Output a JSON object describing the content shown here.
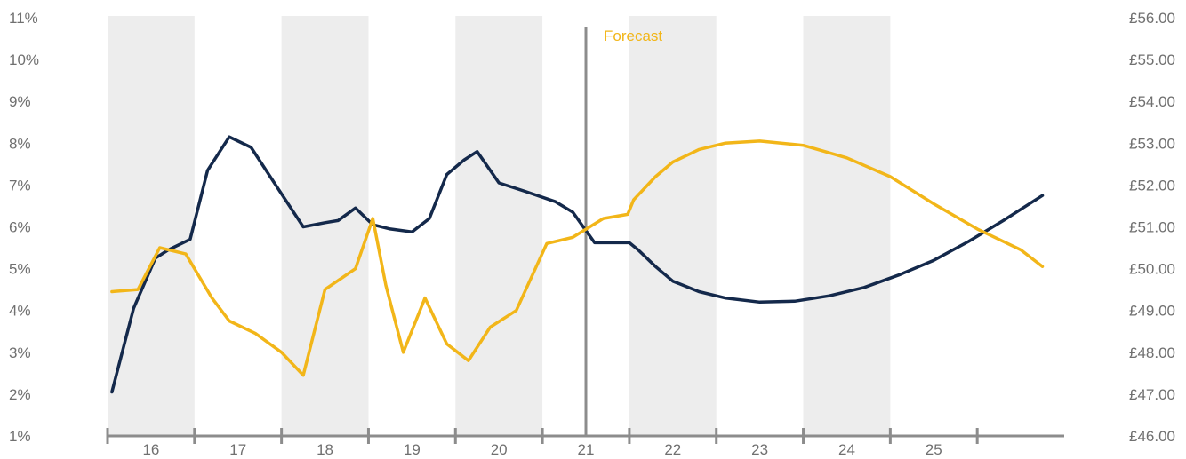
{
  "chart_data": {
    "type": "line",
    "x_categories": [
      "16",
      "17",
      "18",
      "19",
      "20",
      "21",
      "22",
      "23",
      "24",
      "25"
    ],
    "y_left": {
      "ticks": [
        "1%",
        "2%",
        "3%",
        "4%",
        "5%",
        "6%",
        "7%",
        "8%",
        "9%",
        "10%",
        "11%"
      ],
      "range": [
        1,
        11
      ]
    },
    "y_right": {
      "ticks": [
        "£46.00",
        "£47.00",
        "£48.00",
        "£49.00",
        "£50.00",
        "£51.00",
        "£52.00",
        "£53.00",
        "£54.00",
        "£55.00",
        "£56.00"
      ],
      "range": [
        46,
        56
      ]
    },
    "shaded_bands": [
      "16",
      "18",
      "20",
      "22",
      "24"
    ],
    "forecast": {
      "label": "Forecast",
      "starts_at": 21.0
    },
    "grid": false,
    "series": [
      {
        "axis": "left",
        "color": "#14294b",
        "points": [
          [
            15.55,
            2.05
          ],
          [
            15.8,
            4.05
          ],
          [
            16.05,
            5.25
          ],
          [
            16.2,
            5.45
          ],
          [
            16.45,
            5.7
          ],
          [
            16.65,
            7.35
          ],
          [
            16.9,
            8.15
          ],
          [
            17.15,
            7.9
          ],
          [
            17.45,
            6.95
          ],
          [
            17.75,
            6.0
          ],
          [
            18.0,
            6.1
          ],
          [
            18.15,
            6.15
          ],
          [
            18.35,
            6.45
          ],
          [
            18.55,
            6.05
          ],
          [
            18.75,
            5.95
          ],
          [
            19.0,
            5.88
          ],
          [
            19.2,
            6.2
          ],
          [
            19.4,
            7.25
          ],
          [
            19.6,
            7.6
          ],
          [
            19.75,
            7.8
          ],
          [
            20.0,
            7.05
          ],
          [
            20.3,
            6.85
          ],
          [
            20.65,
            6.6
          ],
          [
            20.85,
            6.35
          ],
          [
            21.1,
            5.62
          ],
          [
            21.5,
            5.62
          ],
          [
            21.6,
            5.45
          ],
          [
            21.8,
            5.05
          ],
          [
            22.0,
            4.7
          ],
          [
            22.3,
            4.45
          ],
          [
            22.6,
            4.3
          ],
          [
            23.0,
            4.2
          ],
          [
            23.4,
            4.22
          ],
          [
            23.8,
            4.35
          ],
          [
            24.2,
            4.55
          ],
          [
            24.6,
            4.85
          ],
          [
            25.0,
            5.2
          ],
          [
            25.4,
            5.65
          ],
          [
            25.8,
            6.15
          ],
          [
            26.25,
            6.75
          ]
        ]
      },
      {
        "axis": "right",
        "color": "#f2b619",
        "points": [
          [
            15.55,
            49.45
          ],
          [
            15.85,
            49.5
          ],
          [
            16.1,
            50.5
          ],
          [
            16.4,
            50.35
          ],
          [
            16.7,
            49.3
          ],
          [
            16.9,
            48.75
          ],
          [
            17.2,
            48.45
          ],
          [
            17.5,
            48.0
          ],
          [
            17.75,
            47.45
          ],
          [
            18.0,
            49.5
          ],
          [
            18.35,
            50.0
          ],
          [
            18.55,
            51.2
          ],
          [
            18.7,
            49.6
          ],
          [
            18.9,
            48.0
          ],
          [
            19.15,
            49.3
          ],
          [
            19.4,
            48.2
          ],
          [
            19.65,
            47.8
          ],
          [
            19.9,
            48.6
          ],
          [
            20.2,
            49.0
          ],
          [
            20.55,
            50.6
          ],
          [
            20.85,
            50.75
          ],
          [
            21.2,
            51.2
          ],
          [
            21.48,
            51.3
          ],
          [
            21.55,
            51.65
          ],
          [
            21.8,
            52.2
          ],
          [
            22.0,
            52.55
          ],
          [
            22.3,
            52.85
          ],
          [
            22.6,
            53.0
          ],
          [
            23.0,
            53.05
          ],
          [
            23.5,
            52.95
          ],
          [
            24.0,
            52.65
          ],
          [
            24.5,
            52.2
          ],
          [
            25.0,
            51.55
          ],
          [
            25.5,
            50.95
          ],
          [
            26.0,
            50.45
          ],
          [
            26.25,
            50.05
          ]
        ]
      }
    ]
  }
}
